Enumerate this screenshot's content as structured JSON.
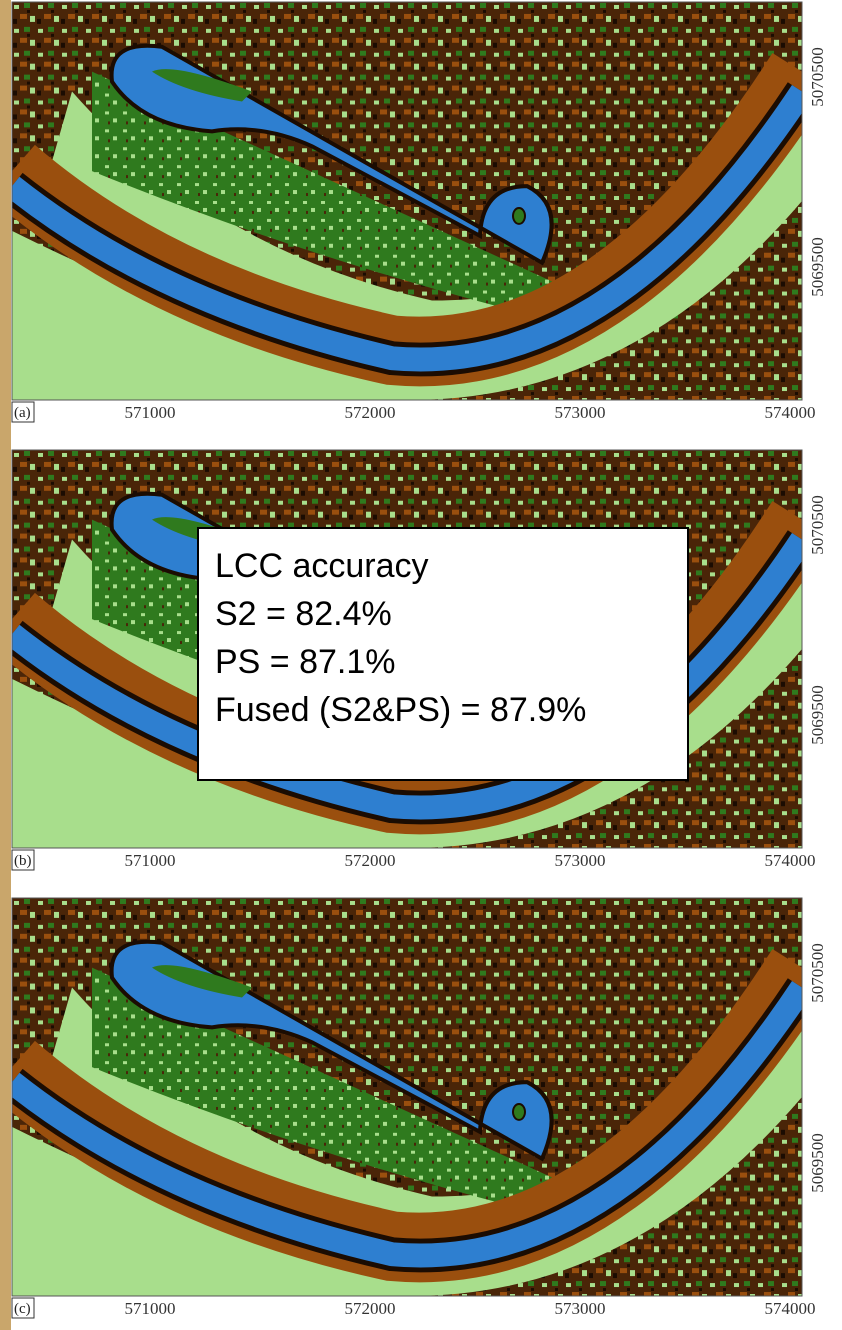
{
  "panels": [
    {
      "label": "(a)",
      "x_ticks": [
        "571000",
        "572000",
        "573000",
        "574000"
      ],
      "y_ticks": [
        "5070500",
        "5069500"
      ]
    },
    {
      "label": "(b)",
      "x_ticks": [
        "571000",
        "572000",
        "573000",
        "574000"
      ],
      "y_ticks": [
        "5070500",
        "5069500"
      ]
    },
    {
      "label": "(c)",
      "x_ticks": [
        "571000",
        "572000",
        "573000",
        "574000"
      ],
      "y_ticks": [
        "5070500",
        "5069500"
      ]
    }
  ],
  "annotation": {
    "lines": [
      "LCC accuracy",
      "S2 = 82.4%",
      "PS = 87.1%",
      "Fused (S2&PS) = 87.9%"
    ]
  }
}
